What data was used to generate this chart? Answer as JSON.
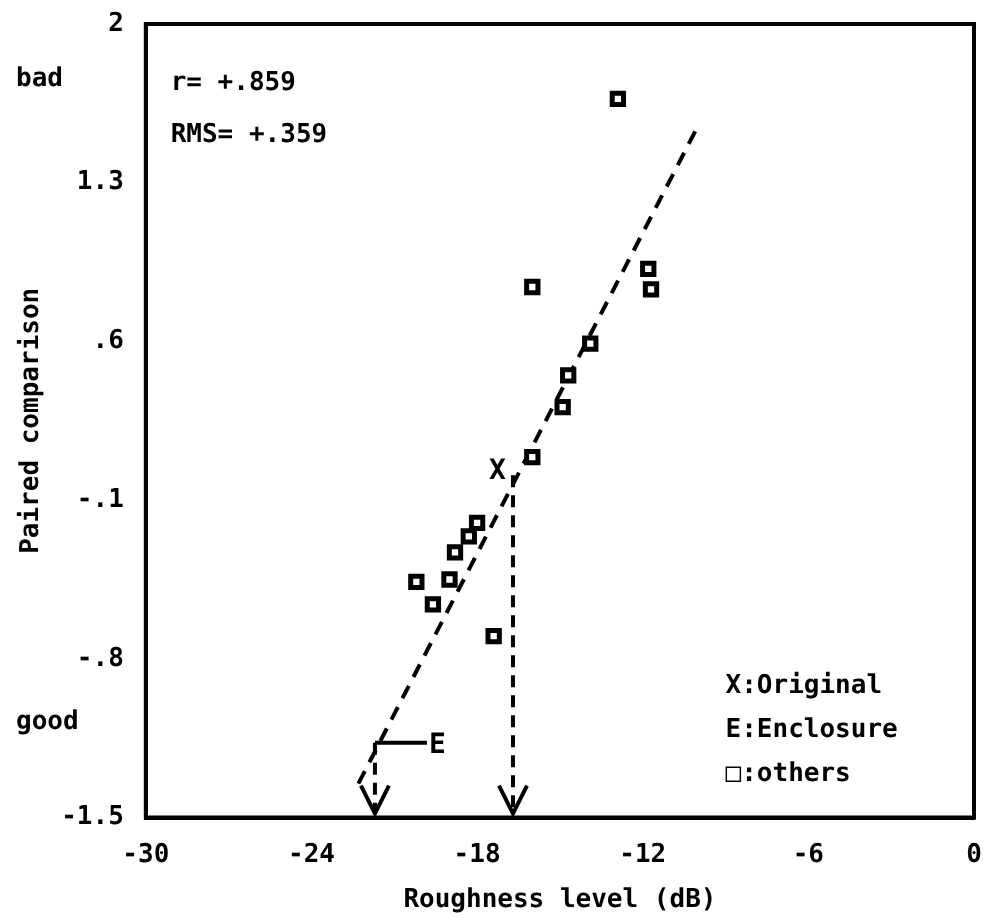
{
  "chart_data": {
    "type": "scatter",
    "xlabel": "Roughness level (dB)",
    "ylabel": "Paired comparison",
    "xlim": [
      -30,
      0
    ],
    "xticks": [
      -30,
      -24,
      -18,
      -12,
      -6,
      0
    ],
    "ylim": [
      -1.5,
      2
    ],
    "yticks": [
      -1.5,
      {
        "value": -0.8,
        "label": "-.8"
      },
      {
        "value": -0.1,
        "label": "-.1"
      },
      {
        "value": 0.6,
        "label": ".6"
      },
      1.3,
      2
    ],
    "grid": false,
    "legend": false,
    "marker": "square",
    "series": [
      {
        "color": "#000000",
        "x": [
          -12.9,
          -16.0,
          -11.8,
          -11.7,
          -13.9,
          -14.7,
          -14.9,
          -16.0,
          -18.0,
          -18.3,
          -18.8,
          -19.0,
          -20.2,
          -19.6,
          -17.4
        ],
        "values": [
          1.67,
          0.84,
          0.92,
          0.83,
          0.59,
          0.45,
          0.31,
          0.09,
          -0.2,
          -0.26,
          -0.33,
          -0.45,
          -0.46,
          -0.56,
          -0.7
        ]
      },
      {
        "type": "line",
        "color": "#000000",
        "marker": "none",
        "line_style": "dashed",
        "x": [
          -22.3,
          -10.0
        ],
        "values": [
          -1.35,
          1.55
        ]
      }
    ],
    "annotations": [
      "r= +.859",
      "RMS= +.359",
      "bad",
      "good",
      "X:Original",
      "E:Enclosure",
      "□:others",
      {
        "text": "X",
        "x": -16.7,
        "y": 0.01
      },
      {
        "text": "E",
        "x": -21.7,
        "y": -1.17
      }
    ]
  }
}
